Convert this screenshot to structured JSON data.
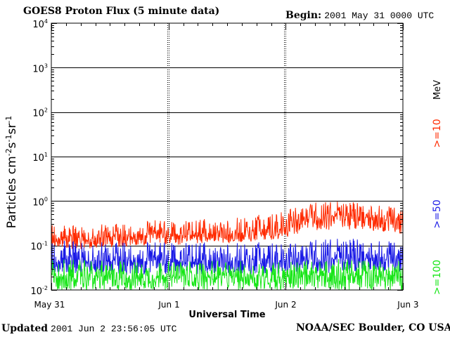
{
  "header": {
    "title": "GOES8 Proton Flux (5 minute data)",
    "begin_label": "Begin:",
    "begin_value": "2001 May 31 0000 UTC"
  },
  "footer": {
    "updated_label": "Updated",
    "updated_value": "2001 Jun  2 23:56:05 UTC",
    "source": "NOAA/SEC Boulder, CO USA"
  },
  "chart_data": {
    "type": "line",
    "title": "GOES8 Proton Flux (5 minute data)",
    "xlabel": "Universal Time",
    "ylabel": "Particles cm-2s-1sr-1",
    "ylabel_parts": {
      "base": "Particles cm",
      "e1": "-2",
      "m1": "s",
      "e2": "-1",
      "m2": "sr",
      "e3": "-1"
    },
    "y_scale": "log",
    "ylim": [
      0.01,
      10000
    ],
    "y_ticks": [
      {
        "value": 0.01,
        "base": "10",
        "exp": "-2"
      },
      {
        "value": 0.1,
        "base": "10",
        "exp": "-1"
      },
      {
        "value": 1,
        "base": "10",
        "exp": "0"
      },
      {
        "value": 10,
        "base": "10",
        "exp": "1"
      },
      {
        "value": 100,
        "base": "10",
        "exp": "2"
      },
      {
        "value": 1000,
        "base": "10",
        "exp": "3"
      },
      {
        "value": 10000,
        "base": "10",
        "exp": "4"
      }
    ],
    "x_unit": "day",
    "xlim": [
      0,
      3
    ],
    "x_ticks": [
      {
        "value": 0,
        "label": "May 31"
      },
      {
        "value": 1,
        "label": "Jun 1"
      },
      {
        "value": 2,
        "label": "Jun 2"
      },
      {
        "value": 3,
        "label": "Jun 3"
      }
    ],
    "grid": true,
    "legend_position": "right",
    "legend_unit": "MeV",
    "series": [
      {
        "name": ">=10",
        "color": "#ff2a00",
        "x_days": [
          0.0,
          0.1,
          0.2,
          0.3,
          0.4,
          0.5,
          0.6,
          0.7,
          0.8,
          0.9,
          1.0,
          1.1,
          1.2,
          1.3,
          1.4,
          1.5,
          1.6,
          1.7,
          1.8,
          1.9,
          2.0,
          2.1,
          2.2,
          2.3,
          2.4,
          2.5,
          2.6,
          2.7,
          2.8,
          2.9,
          3.0
        ],
        "mean": [
          0.17,
          0.15,
          0.15,
          0.14,
          0.15,
          0.16,
          0.15,
          0.16,
          0.17,
          0.18,
          0.17,
          0.17,
          0.18,
          0.18,
          0.19,
          0.18,
          0.19,
          0.2,
          0.21,
          0.21,
          0.25,
          0.35,
          0.4,
          0.42,
          0.45,
          0.46,
          0.44,
          0.42,
          0.4,
          0.38,
          0.35
        ],
        "low": [
          0.1,
          0.09,
          0.08,
          0.08,
          0.09,
          0.09,
          0.09,
          0.1,
          0.1,
          0.11,
          0.1,
          0.1,
          0.11,
          0.11,
          0.12,
          0.11,
          0.12,
          0.12,
          0.13,
          0.13,
          0.15,
          0.18,
          0.2,
          0.22,
          0.22,
          0.23,
          0.22,
          0.2,
          0.19,
          0.18,
          0.17
        ],
        "high": [
          0.35,
          0.3,
          0.3,
          0.28,
          0.3,
          0.33,
          0.3,
          0.32,
          0.35,
          0.38,
          0.35,
          0.36,
          0.38,
          0.4,
          0.42,
          0.4,
          0.45,
          0.48,
          0.5,
          0.55,
          0.7,
          0.8,
          0.9,
          0.95,
          0.98,
          1.0,
          0.95,
          0.9,
          0.85,
          0.8,
          0.75
        ]
      },
      {
        "name": ">=50",
        "color": "#1a1ae6",
        "x_days": [
          0.0,
          0.5,
          1.0,
          1.5,
          2.0,
          2.5,
          3.0
        ],
        "mean": [
          0.05,
          0.045,
          0.045,
          0.045,
          0.045,
          0.05,
          0.05
        ],
        "low": [
          0.025,
          0.022,
          0.022,
          0.022,
          0.022,
          0.024,
          0.024
        ],
        "high": [
          0.15,
          0.12,
          0.12,
          0.12,
          0.12,
          0.15,
          0.13
        ]
      },
      {
        "name": ">=100",
        "color": "#17e617",
        "x_days": [
          0.0,
          0.5,
          1.0,
          1.5,
          2.0,
          2.5,
          3.0
        ],
        "mean": [
          0.02,
          0.02,
          0.02,
          0.02,
          0.02,
          0.021,
          0.02
        ],
        "low": [
          0.01,
          0.01,
          0.01,
          0.01,
          0.01,
          0.01,
          0.01
        ],
        "high": [
          0.05,
          0.045,
          0.045,
          0.045,
          0.045,
          0.05,
          0.045
        ]
      }
    ]
  }
}
